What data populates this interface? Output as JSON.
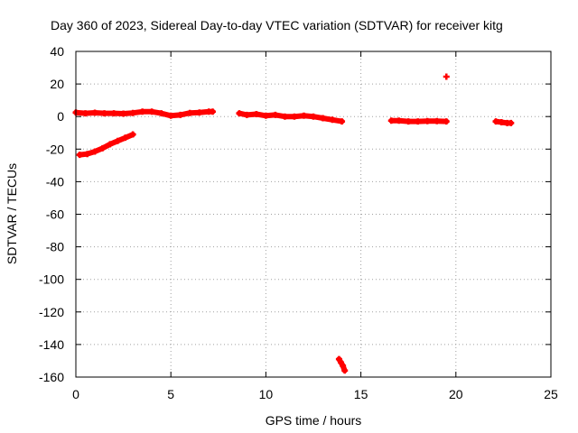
{
  "chart_data": {
    "type": "scatter",
    "title": "Day 360 of 2023, Sidereal Day-to-day VTEC variation (SDTVAR) for receiver kitg",
    "xlabel": "GPS time / hours",
    "ylabel": "SDTVAR / TECUs",
    "xlim": [
      0,
      25
    ],
    "ylim": [
      -160,
      40
    ],
    "xticks": [
      "0",
      "5",
      "10",
      "15",
      "20",
      "25"
    ],
    "yticks": [
      "40",
      "20",
      "0",
      "-20",
      "-40",
      "-60",
      "-80",
      "-100",
      "-120",
      "-140",
      "-160"
    ],
    "grid": true,
    "marker_color": "#ff0000",
    "series": [
      {
        "name": "SDTVAR",
        "segments": [
          {
            "x": [
              0.0,
              0.5,
              1.0,
              1.5,
              2.0,
              2.5,
              3.0,
              3.5,
              4.0,
              4.5,
              5.0,
              5.5,
              6.0,
              6.5,
              7.0,
              7.2
            ],
            "y": [
              2.5,
              2.0,
              2.3,
              2.0,
              2.0,
              1.8,
              2.2,
              3.0,
              3.0,
              2.0,
              0.5,
              1.0,
              2.2,
              2.5,
              3.0,
              3.0
            ]
          },
          {
            "x": [
              0.2,
              0.6,
              1.0,
              1.4,
              1.8,
              2.2,
              2.6,
              3.0
            ],
            "y": [
              -23.5,
              -23.0,
              -21.5,
              -19.5,
              -17.0,
              -15.0,
              -13.0,
              -11.0
            ]
          },
          {
            "x": [
              8.6,
              9.0,
              9.5,
              10.0,
              10.5,
              11.0,
              11.5,
              12.0,
              12.5,
              13.0,
              13.5,
              14.0
            ],
            "y": [
              2.0,
              1.0,
              1.5,
              0.5,
              1.0,
              0.0,
              0.0,
              0.5,
              0.0,
              -1.0,
              -2.0,
              -3.0
            ]
          },
          {
            "x": [
              13.85,
              13.95,
              14.05,
              14.15
            ],
            "y": [
              -149,
              -151,
              -153,
              -156
            ]
          },
          {
            "x": [
              16.6,
              17.0,
              17.5,
              18.0,
              18.5,
              19.0,
              19.5
            ],
            "y": [
              -2.5,
              -2.5,
              -3.0,
              -3.0,
              -2.8,
              -2.8,
              -3.0
            ]
          },
          {
            "x": [
              19.5
            ],
            "y": [
              24.5
            ]
          },
          {
            "x": [
              22.1,
              22.4,
              22.7,
              22.9
            ],
            "y": [
              -3.0,
              -3.5,
              -4.0,
              -4.0
            ]
          }
        ]
      }
    ]
  }
}
